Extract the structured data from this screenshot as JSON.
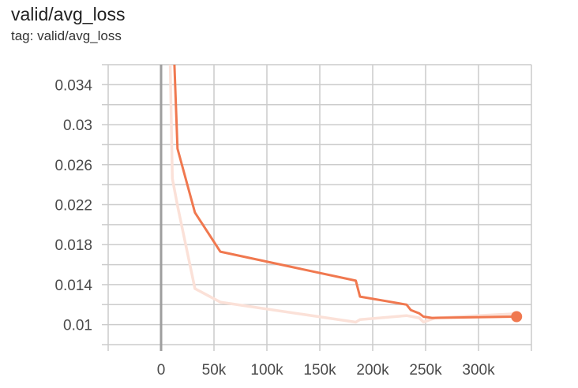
{
  "header": {
    "title": "valid/avg_loss",
    "subtitle": "tag: valid/avg_loss"
  },
  "chart_data": {
    "type": "line",
    "title": "valid/avg_loss",
    "xlabel": "",
    "ylabel": "",
    "xlim": [
      -50000,
      350000
    ],
    "ylim": [
      0.008,
      0.036
    ],
    "grid": true,
    "x_ticks": [
      0,
      50000,
      100000,
      150000,
      200000,
      250000,
      300000
    ],
    "x_tick_labels": [
      "0",
      "50k",
      "100k",
      "150k",
      "200k",
      "250k",
      "300k"
    ],
    "y_ticks": [
      0.01,
      0.014,
      0.018,
      0.022,
      0.026,
      0.03,
      0.034
    ],
    "y_tick_labels": [
      "0.01",
      "0.014",
      "0.018",
      "0.022",
      "0.026",
      "0.03",
      "0.034"
    ],
    "colors": {
      "smoothed": "#f0784f",
      "raw": "#fbe1d8",
      "grid": "#cccccc",
      "zero_axis": "#9e9e9e"
    },
    "series": [
      {
        "role": "raw",
        "x": [
          7000,
          10700,
          15500,
          32000,
          56000,
          184000,
          188000,
          232000,
          244000,
          248000,
          259000,
          336000
        ],
        "y": [
          0.045,
          0.0246,
          0.0219,
          0.0136,
          0.01225,
          0.01025,
          0.0105,
          0.0109,
          0.01067,
          0.01025,
          0.01067,
          0.0111
        ]
      },
      {
        "role": "smoothed",
        "x": [
          9500,
          15500,
          32000,
          56000,
          184000,
          188000,
          232000,
          236000,
          244000,
          248000,
          256000,
          336000
        ],
        "y": [
          0.045,
          0.0276,
          0.0212,
          0.0173,
          0.0144,
          0.0128,
          0.012,
          0.01146,
          0.01112,
          0.0108,
          0.01067,
          0.0108
        ]
      }
    ]
  }
}
